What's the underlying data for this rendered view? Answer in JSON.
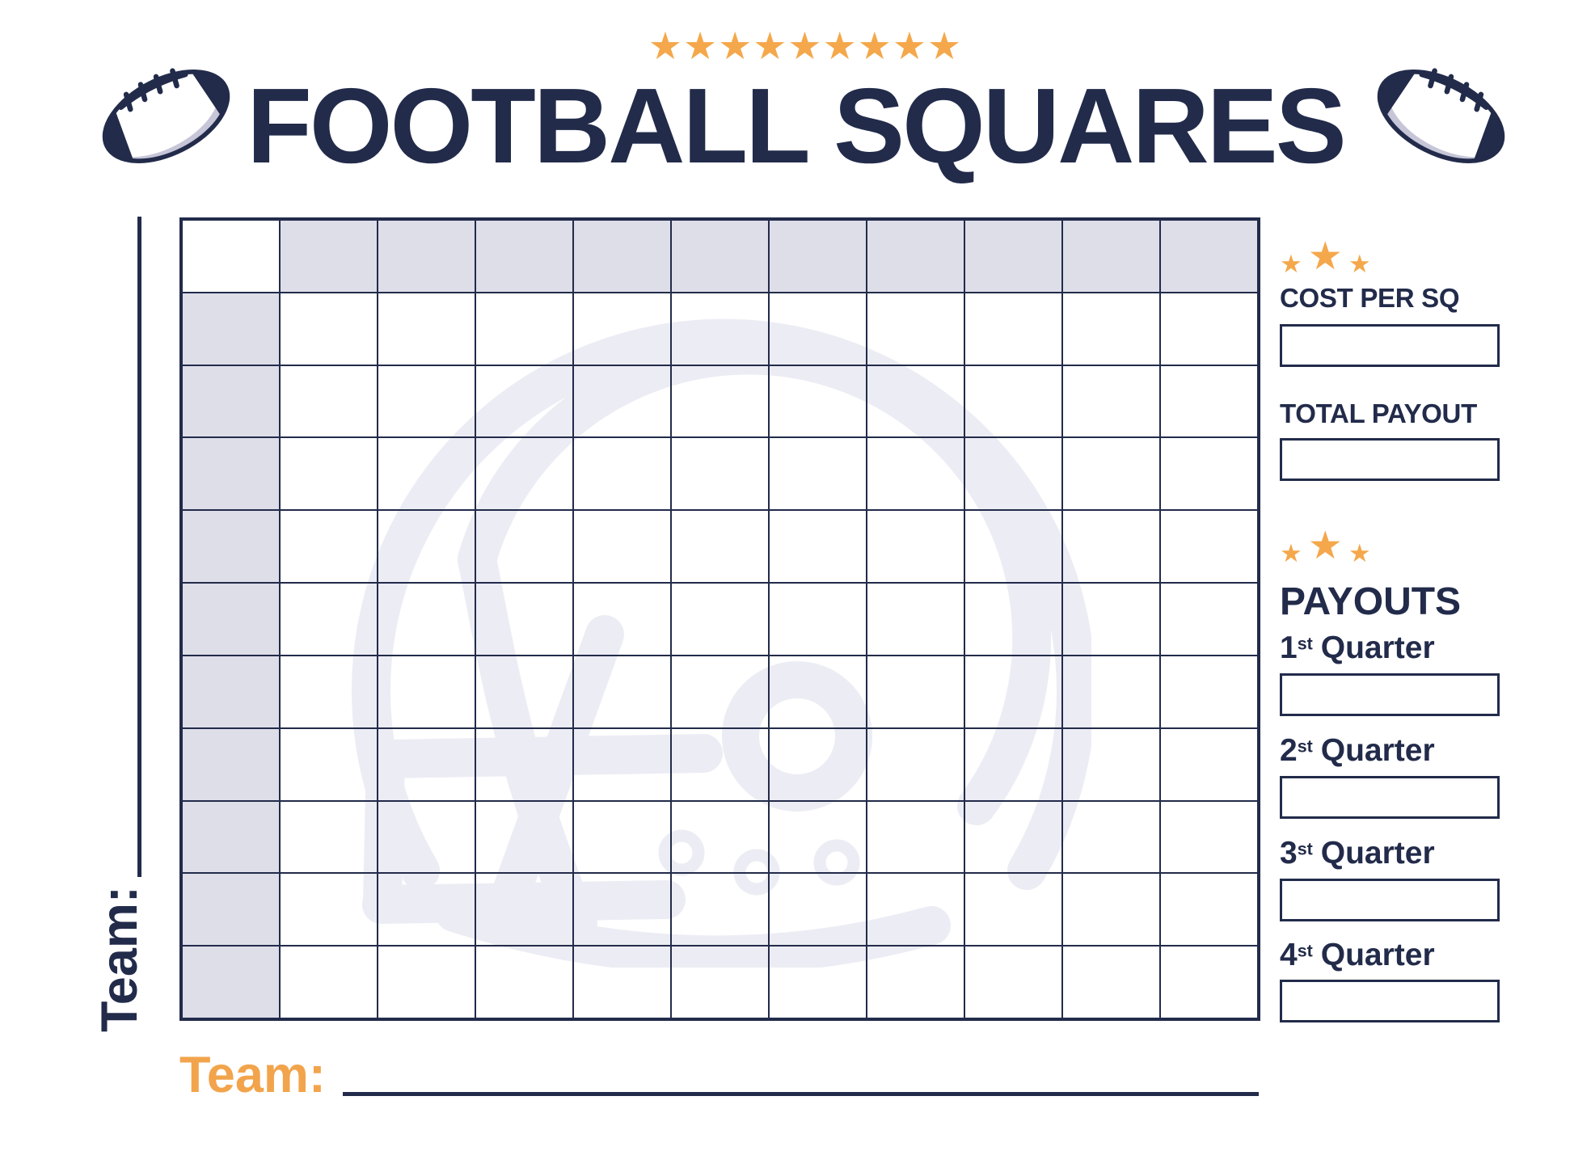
{
  "title": {
    "stars": "★★★★★★★★★",
    "text": "FOOTBALL SQUARES"
  },
  "grid": {
    "rows": 11,
    "cols": 11
  },
  "team_left": {
    "label": "Team:"
  },
  "team_bottom": {
    "label": "Team:"
  },
  "panel": {
    "star": "★",
    "cost": {
      "label": "COST PER SQ"
    },
    "total": {
      "label": "TOTAL PAYOUT"
    },
    "payouts": {
      "heading": "PAYOUTS",
      "quarters": [
        {
          "num": "1",
          "sup": "st",
          "word": "Quarter"
        },
        {
          "num": "2",
          "sup": "st",
          "word": "Quarter"
        },
        {
          "num": "3",
          "sup": "st",
          "word": "Quarter"
        },
        {
          "num": "4",
          "sup": "st",
          "word": "Quarter"
        }
      ]
    }
  },
  "colors": {
    "navy": "#222B4A",
    "orange": "#F4A84B",
    "orange-deep": "#F2A44C",
    "shade": "#DEDEE9",
    "watermark": "#ECECF4",
    "ball-shadow": "#C6C6D8"
  }
}
